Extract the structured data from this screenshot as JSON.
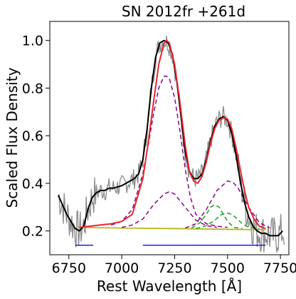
{
  "chart_data": {
    "type": "line",
    "title": "SN 2012fr  +261d",
    "xlabel": "Rest Wavelength [Å]",
    "ylabel": "Scaled Flux Density",
    "xlim": [
      6660,
      7790
    ],
    "ylim": [
      0.1,
      1.08
    ],
    "xticks": [
      6750,
      7000,
      7250,
      7500,
      7750
    ],
    "yticks": [
      0.2,
      0.4,
      0.6,
      0.8,
      1.0
    ],
    "xtick_labels": [
      "6750",
      "7000",
      "7250",
      "7500",
      "7750"
    ],
    "ytick_labels": [
      "0.2",
      "0.4",
      "0.6",
      "0.8",
      "1.0"
    ],
    "grid": false,
    "legend": "none",
    "colors": {
      "raw": "#8c8c8c",
      "smoothed": "#000000",
      "fit_total": "#e8262c",
      "fe_components": "#8b008b",
      "ni_components": "#1e9e1e",
      "continuum": "#b8b820",
      "fit_ranges": "#1f1fd6"
    },
    "series": [
      {
        "key": "smoothed",
        "x": [
          6700,
          6720,
          6740,
          6760,
          6780,
          6800,
          6820,
          6840,
          6860,
          6880,
          6900,
          6920,
          6940,
          6960,
          6980,
          7000,
          7020,
          7040,
          7060,
          7080,
          7100,
          7120,
          7140,
          7160,
          7180,
          7200,
          7220,
          7240,
          7260,
          7280,
          7300,
          7320,
          7340,
          7360,
          7380,
          7400,
          7420,
          7440,
          7460,
          7480,
          7500,
          7520,
          7540,
          7560,
          7580,
          7600,
          7620,
          7640,
          7660,
          7680,
          7700,
          7720,
          7740,
          7760
        ],
        "y": [
          0.35,
          0.31,
          0.27,
          0.24,
          0.21,
          0.2,
          0.22,
          0.29,
          0.34,
          0.36,
          0.37,
          0.37,
          0.38,
          0.38,
          0.385,
          0.39,
          0.4,
          0.41,
          0.42,
          0.44,
          0.5,
          0.63,
          0.8,
          0.93,
          0.99,
          1.0,
          0.99,
          0.94,
          0.83,
          0.68,
          0.53,
          0.45,
          0.42,
          0.42,
          0.44,
          0.5,
          0.58,
          0.64,
          0.67,
          0.68,
          0.665,
          0.61,
          0.52,
          0.41,
          0.32,
          0.26,
          0.22,
          0.2,
          0.19,
          0.19,
          0.18,
          0.18,
          0.18,
          0.2
        ]
      },
      {
        "key": "fit_total",
        "x": [
          6800,
          6850,
          6900,
          6950,
          7000,
          7050,
          7100,
          7125,
          7150,
          7175,
          7200,
          7212,
          7225,
          7250,
          7275,
          7300,
          7320,
          7340,
          7360,
          7380,
          7400,
          7420,
          7440,
          7460,
          7480,
          7500,
          7520,
          7540,
          7560,
          7580,
          7600,
          7625,
          7650,
          7680
        ],
        "y": [
          0.215,
          0.22,
          0.225,
          0.23,
          0.24,
          0.27,
          0.42,
          0.57,
          0.74,
          0.9,
          0.99,
          1.0,
          0.99,
          0.9,
          0.74,
          0.56,
          0.45,
          0.41,
          0.4,
          0.43,
          0.49,
          0.57,
          0.63,
          0.665,
          0.675,
          0.67,
          0.63,
          0.55,
          0.46,
          0.37,
          0.3,
          0.25,
          0.22,
          0.21
        ]
      },
      {
        "key": "fe_main",
        "x": [
          6950,
          7000,
          7050,
          7100,
          7125,
          7150,
          7175,
          7200,
          7212,
          7225,
          7250,
          7275,
          7300,
          7325,
          7350,
          7400,
          7450,
          7500
        ],
        "y": [
          0.225,
          0.24,
          0.29,
          0.44,
          0.56,
          0.69,
          0.8,
          0.85,
          0.85,
          0.84,
          0.76,
          0.62,
          0.46,
          0.34,
          0.27,
          0.23,
          0.22,
          0.215
        ]
      },
      {
        "key": "fe_side",
        "x": [
          7000,
          7050,
          7100,
          7150,
          7200,
          7225,
          7250,
          7300,
          7350,
          7400,
          7450
        ],
        "y": [
          0.215,
          0.225,
          0.25,
          0.31,
          0.355,
          0.365,
          0.355,
          0.3,
          0.245,
          0.222,
          0.215
        ]
      },
      {
        "key": "fe_red",
        "x": [
          7300,
          7350,
          7400,
          7450,
          7500,
          7525,
          7550,
          7600,
          7650,
          7700
        ],
        "y": [
          0.212,
          0.23,
          0.29,
          0.37,
          0.41,
          0.405,
          0.38,
          0.3,
          0.235,
          0.212
        ]
      },
      {
        "key": "ni_1",
        "x": [
          7330,
          7370,
          7400,
          7420,
          7440,
          7460,
          7480,
          7500,
          7530,
          7570
        ],
        "y": [
          0.212,
          0.235,
          0.27,
          0.3,
          0.31,
          0.3,
          0.27,
          0.24,
          0.215,
          0.21
        ]
      },
      {
        "key": "ni_2",
        "x": [
          7350,
          7400,
          7440,
          7470,
          7500,
          7520,
          7540,
          7570,
          7600,
          7650
        ],
        "y": [
          0.21,
          0.222,
          0.245,
          0.268,
          0.275,
          0.27,
          0.255,
          0.23,
          0.215,
          0.21
        ]
      },
      {
        "key": "continuum",
        "x": [
          6790,
          7000,
          7250,
          7500,
          7680
        ],
        "y": [
          0.215,
          0.212,
          0.21,
          0.207,
          0.205
        ]
      }
    ],
    "fit_ranges": [
      {
        "x": [
          6780,
          6865
        ],
        "y": 0.14
      },
      {
        "x": [
          7100,
          7680
        ],
        "y": 0.14
      }
    ]
  }
}
